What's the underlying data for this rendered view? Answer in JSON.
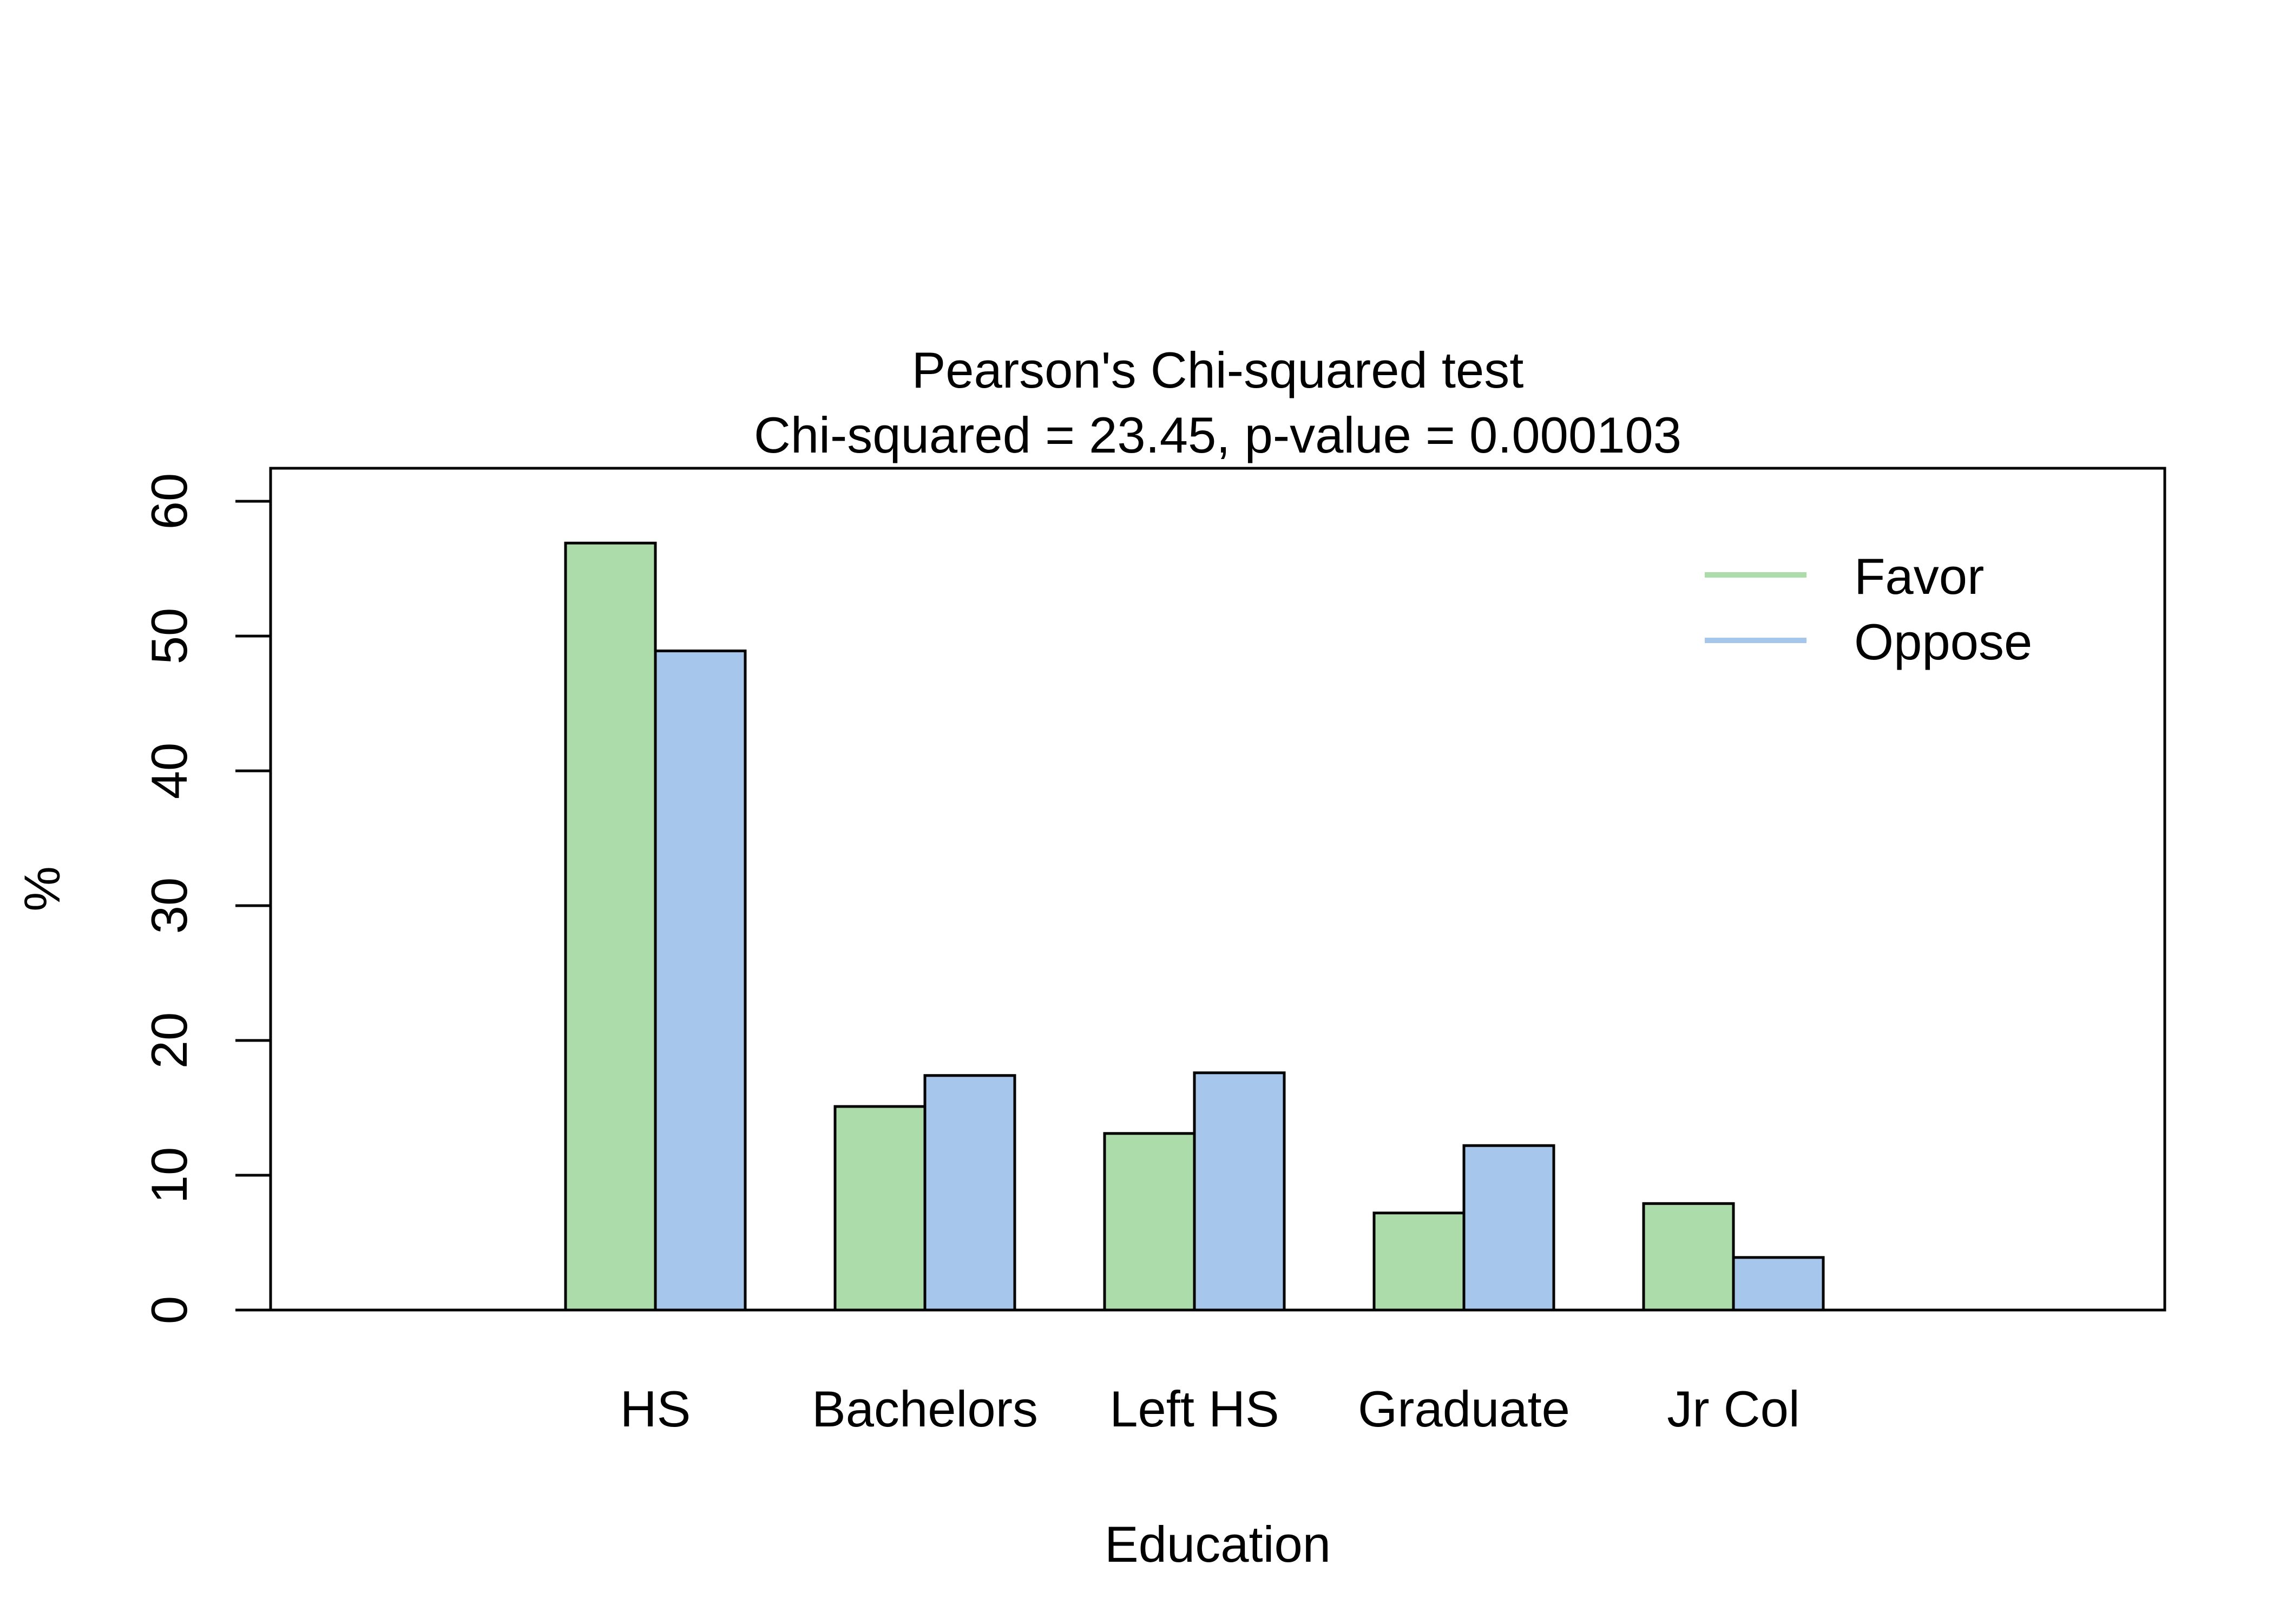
{
  "chart_data": {
    "type": "bar",
    "title": "Pearson's Chi-squared test",
    "subtitle": "Chi-squared = 23.45, p-value = 0.000103",
    "xlabel": "Education",
    "ylabel": "%",
    "categories": [
      "HS",
      "Bachelors",
      "Left HS",
      "Graduate",
      "Jr Col"
    ],
    "series": [
      {
        "name": "Favor",
        "color": "#ACDCA9",
        "values": [
          56.9,
          15.1,
          13.1,
          7.2,
          7.9
        ]
      },
      {
        "name": "Oppose",
        "color": "#A6C6EB",
        "values": [
          48.9,
          17.4,
          17.6,
          12.2,
          3.9
        ]
      }
    ],
    "ylim": [
      0,
      62.5
    ],
    "yticks": [
      "0",
      "10",
      "20",
      "30",
      "40",
      "50",
      "60"
    ],
    "grid": false,
    "legend_position": "top-right"
  }
}
